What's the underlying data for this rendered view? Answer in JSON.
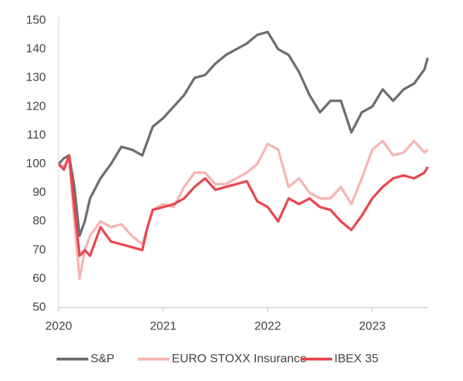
{
  "chart_data": {
    "type": "line",
    "x": [
      2020.0,
      2020.05,
      2020.1,
      2020.15,
      2020.2,
      2020.25,
      2020.3,
      2020.4,
      2020.5,
      2020.6,
      2020.7,
      2020.8,
      2020.85,
      2020.9,
      2021.0,
      2021.1,
      2021.2,
      2021.3,
      2021.4,
      2021.5,
      2021.6,
      2021.7,
      2021.8,
      2021.9,
      2022.0,
      2022.1,
      2022.2,
      2022.3,
      2022.4,
      2022.5,
      2022.6,
      2022.7,
      2022.8,
      2022.9,
      2023.0,
      2023.1,
      2023.2,
      2023.3,
      2023.4,
      2023.5,
      2023.53
    ],
    "series": [
      {
        "name": "S&P",
        "color": "#6e6e6e",
        "values": [
          100,
          102,
          103,
          92,
          75,
          80,
          88,
          95,
          100,
          106,
          105,
          103,
          108,
          113,
          116,
          120,
          124,
          130,
          131,
          135,
          138,
          140,
          142,
          145,
          146,
          140,
          138,
          132,
          124,
          118,
          122,
          122,
          111,
          118,
          120,
          126,
          122,
          126,
          128,
          133,
          137
        ]
      },
      {
        "name": "EURO STOXX Insurance",
        "color": "#f7b4b4",
        "values": [
          100,
          99,
          102,
          80,
          60,
          70,
          75,
          80,
          78,
          79,
          75,
          72,
          78,
          84,
          86,
          85,
          92,
          97,
          97,
          93,
          93,
          95,
          97,
          100,
          107,
          105,
          92,
          95,
          90,
          88,
          88,
          92,
          86,
          95,
          105,
          108,
          103,
          104,
          108,
          104,
          105
        ]
      },
      {
        "name": "IBEX 35",
        "color": "#e8474f",
        "values": [
          100,
          98,
          103,
          85,
          68,
          70,
          68,
          78,
          73,
          72,
          71,
          70,
          78,
          84,
          85,
          86,
          88,
          92,
          95,
          91,
          92,
          93,
          94,
          87,
          85,
          80,
          88,
          86,
          88,
          85,
          84,
          80,
          77,
          82,
          88,
          92,
          95,
          96,
          95,
          97,
          99
        ]
      }
    ],
    "xlim": [
      2020,
      2023.53
    ],
    "xticks": [
      2020,
      2021,
      2022,
      2023
    ],
    "ylim": [
      50,
      150
    ],
    "yticks": [
      50,
      60,
      70,
      80,
      90,
      100,
      110,
      120,
      130,
      140,
      150
    ],
    "legend": "bottom"
  }
}
